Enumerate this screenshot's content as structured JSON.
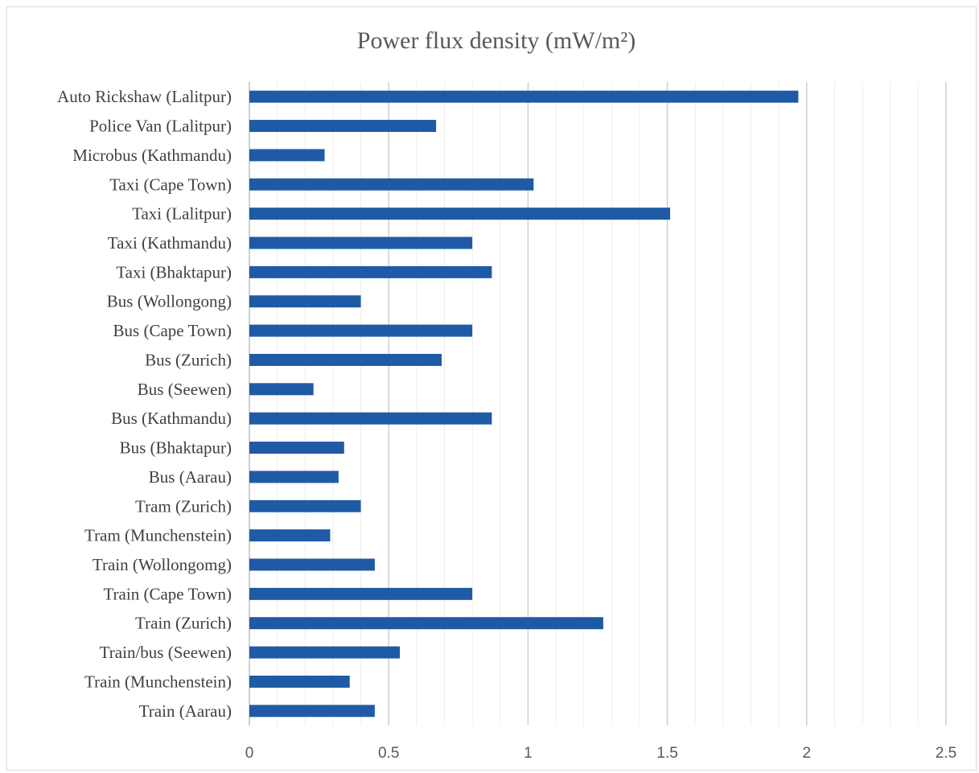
{
  "chart_data": {
    "type": "bar",
    "orientation": "horizontal",
    "title": "Power flux density (mW/m²)",
    "categories": [
      "Auto Rickshaw (Lalitpur)",
      "Police Van (Lalitpur)",
      "Microbus (Kathmandu)",
      "Taxi (Cape Town)",
      "Taxi (Lalitpur)",
      "Taxi (Kathmandu)",
      "Taxi (Bhaktapur)",
      "Bus (Wollongong)",
      "Bus (Cape Town)",
      "Bus (Zurich)",
      "Bus (Seewen)",
      "Bus (Kathmandu)",
      "Bus (Bhaktapur)",
      "Bus (Aarau)",
      "Tram (Zurich)",
      "Tram (Munchenstein)",
      "Train (Wollongomg)",
      "Train (Cape Town)",
      "Train (Zurich)",
      "Train/bus (Seewen)",
      "Train (Munchenstein)",
      "Train (Aarau)"
    ],
    "values": [
      1.97,
      0.67,
      0.27,
      1.02,
      1.51,
      0.8,
      0.87,
      0.4,
      0.8,
      0.69,
      0.23,
      0.87,
      0.34,
      0.32,
      0.4,
      0.29,
      0.45,
      0.8,
      1.27,
      0.54,
      0.36,
      0.45
    ],
    "xlim": [
      0,
      2.5
    ],
    "xticks": [
      "0",
      "0.5",
      "1",
      "1.5",
      "2",
      "2.5"
    ],
    "major_grid_step": 0.5,
    "minor_grid_step": 0.1,
    "grid": true,
    "bar_color": "#1f5aa6",
    "xlabel": "",
    "ylabel": ""
  }
}
